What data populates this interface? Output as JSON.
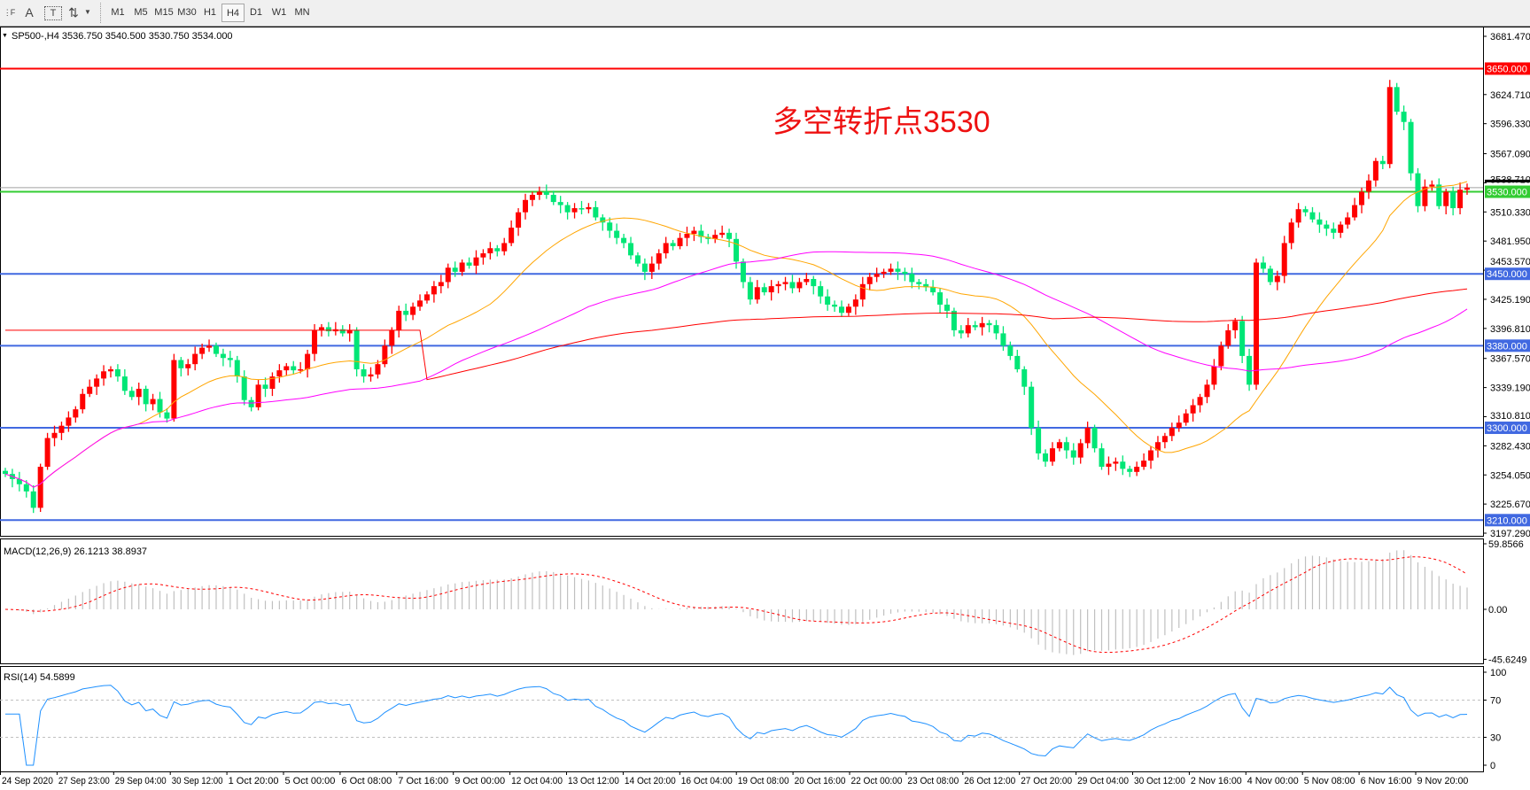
{
  "toolbar": {
    "icons": [
      "grid-icon",
      "text-icon",
      "text-label-icon",
      "arrows-icon",
      "dropdown-icon"
    ],
    "text_icon": "A",
    "label_icon": "T",
    "timeframes": [
      "M1",
      "M5",
      "M15",
      "M30",
      "H1",
      "H4",
      "D1",
      "W1",
      "MN"
    ],
    "active_timeframe": "H4"
  },
  "header": {
    "symbol_line": "SP500-,H4  3536.750 3540.500 3530.750 3534.000"
  },
  "annotation": "多空转折点3530",
  "macd_label": "MACD(12,26,9) 26.1213 38.8937",
  "rsi_label": "RSI(14) 54.5899",
  "colors": {
    "bull": "#ff0000",
    "bear": "#00e676",
    "ma_fast": "#ffa500",
    "ma_mid": "#ff00ff",
    "ma_slow": "#ff0000",
    "rsi": "#1e90ff",
    "macd_hist": "#c0c0c0",
    "macd_signal": "#ff0000"
  },
  "chart_data": {
    "type": "candlestick",
    "symbol": "SP500-",
    "timeframe": "H4",
    "price_axis": {
      "ylim": [
        3197.29,
        3681.47
      ],
      "tick_labels": [
        "3681.470",
        "3624.710",
        "3596.330",
        "3567.090",
        "3538.710",
        "3510.330",
        "3481.950",
        "3453.570",
        "3425.190",
        "3396.810",
        "3367.570",
        "3339.190",
        "3310.810",
        "3282.430",
        "3254.050",
        "3225.670",
        "3197.290"
      ]
    },
    "x_tick_labels": [
      "24 Sep 2020",
      "27 Sep 23:00",
      "29 Sep 04:00",
      "30 Sep 12:00",
      "1 Oct 20:00",
      "5 Oct 00:00",
      "6 Oct 08:00",
      "7 Oct 16:00",
      "9 Oct 00:00",
      "12 Oct 04:00",
      "13 Oct 12:00",
      "14 Oct 20:00",
      "16 Oct 04:00",
      "19 Oct 08:00",
      "20 Oct 16:00",
      "22 Oct 00:00",
      "23 Oct 08:00",
      "26 Oct 12:00",
      "27 Oct 20:00",
      "29 Oct 04:00",
      "30 Oct 12:00",
      "2 Nov 16:00",
      "4 Nov 00:00",
      "5 Nov 08:00",
      "6 Nov 16:00",
      "9 Nov 20:00"
    ],
    "closes": [
      3255,
      3250,
      3245,
      3238,
      3222,
      3262,
      3290,
      3295,
      3302,
      3310,
      3318,
      3333,
      3340,
      3348,
      3355,
      3357,
      3350,
      3336,
      3330,
      3338,
      3323,
      3328,
      3315,
      3309,
      3366,
      3358,
      3362,
      3372,
      3378,
      3380,
      3372,
      3368,
      3366,
      3350,
      3327,
      3320,
      3342,
      3338,
      3350,
      3356,
      3360,
      3356,
      3357,
      3372,
      3395,
      3398,
      3394,
      3396,
      3392,
      3395,
      3357,
      3350,
      3352,
      3362,
      3380,
      3395,
      3414,
      3410,
      3418,
      3424,
      3430,
      3438,
      3442,
      3456,
      3452,
      3461,
      3458,
      3466,
      3470,
      3475,
      3472,
      3480,
      3495,
      3510,
      3522,
      3527,
      3530,
      3527,
      3520,
      3517,
      3510,
      3514,
      3513,
      3515,
      3505,
      3500,
      3492,
      3485,
      3480,
      3468,
      3460,
      3452,
      3460,
      3470,
      3480,
      3477,
      3485,
      3489,
      3492,
      3486,
      3484,
      3488,
      3490,
      3484,
      3462,
      3442,
      3425,
      3437,
      3432,
      3438,
      3440,
      3442,
      3436,
      3442,
      3445,
      3438,
      3428,
      3420,
      3418,
      3412,
      3418,
      3425,
      3440,
      3447,
      3450,
      3452,
      3455,
      3452,
      3450,
      3442,
      3440,
      3437,
      3432,
      3420,
      3414,
      3395,
      3392,
      3400,
      3398,
      3402,
      3400,
      3392,
      3380,
      3370,
      3357,
      3340,
      3300,
      3275,
      3267,
      3280,
      3286,
      3278,
      3271,
      3285,
      3300,
      3280,
      3262,
      3265,
      3267,
      3260,
      3257,
      3262,
      3268,
      3278,
      3286,
      3292,
      3300,
      3305,
      3314,
      3322,
      3330,
      3342,
      3360,
      3380,
      3395,
      3404,
      3370,
      3342,
      3461,
      3455,
      3442,
      3448,
      3480,
      3500,
      3513,
      3510,
      3503,
      3498,
      3494,
      3490,
      3498,
      3505,
      3517,
      3530,
      3541,
      3560,
      3557,
      3632,
      3608,
      3598,
      3548,
      3516,
      3535,
      3537,
      3516,
      3530,
      3514,
      3532,
      3534
    ],
    "horizontal_levels": [
      {
        "value": 3650,
        "label": "3650.000",
        "color": "#ff0000"
      },
      {
        "value": 3530,
        "label": "3530.000",
        "color": "#33cc33"
      },
      {
        "value": 3450,
        "label": "3450.000",
        "color": "#4169e1"
      },
      {
        "value": 3380,
        "label": "3380.000",
        "color": "#4169e1"
      },
      {
        "value": 3300,
        "label": "3300.000",
        "color": "#4169e1"
      },
      {
        "value": 3210,
        "label": "3210.000",
        "color": "#4169e1"
      }
    ],
    "current_price": {
      "value": 3534,
      "label": "3534.000"
    },
    "macd": {
      "main": 26.1213,
      "signal": 38.8937,
      "ylim": [
        -45.6249,
        59.8566
      ],
      "tick_labels": [
        "59.8566",
        "0.00",
        "-45.6249"
      ]
    },
    "rsi": {
      "value": 54.5899,
      "ylim": [
        0,
        100
      ],
      "levels": [
        30,
        70
      ],
      "tick_labels": [
        "100",
        "70",
        "30",
        "0"
      ]
    }
  }
}
